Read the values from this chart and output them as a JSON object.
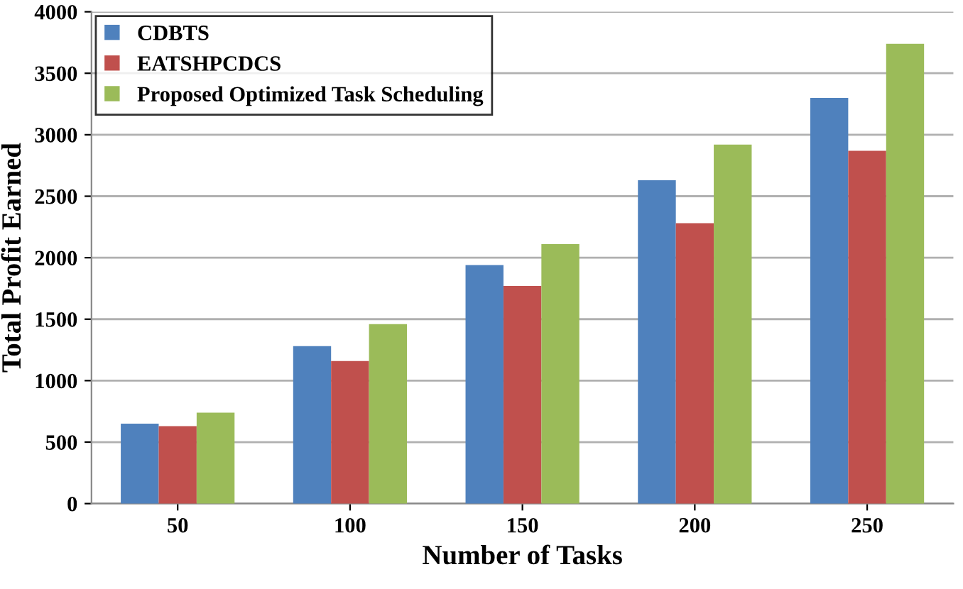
{
  "chart_data": {
    "type": "bar",
    "xlabel": "Number of Tasks",
    "ylabel": "Total Profit Earned",
    "categories": [
      "50",
      "100",
      "150",
      "200",
      "250"
    ],
    "series": [
      {
        "name": "CDBTS",
        "color": "#4f81bd",
        "values": [
          650,
          1280,
          1940,
          2630,
          3300
        ]
      },
      {
        "name": "EATSHPCDCS",
        "color": "#c0504d",
        "values": [
          630,
          1160,
          1770,
          2280,
          2870
        ]
      },
      {
        "name": "Proposed Optimized Task Scheduling",
        "color": "#9bbb59",
        "values": [
          740,
          1460,
          2110,
          2920,
          3740
        ]
      }
    ],
    "ylim": [
      0,
      4000
    ],
    "yticks": [
      0,
      500,
      1000,
      1500,
      2000,
      2500,
      3000,
      3500,
      4000
    ],
    "grid": "y",
    "legend": "top left"
  }
}
